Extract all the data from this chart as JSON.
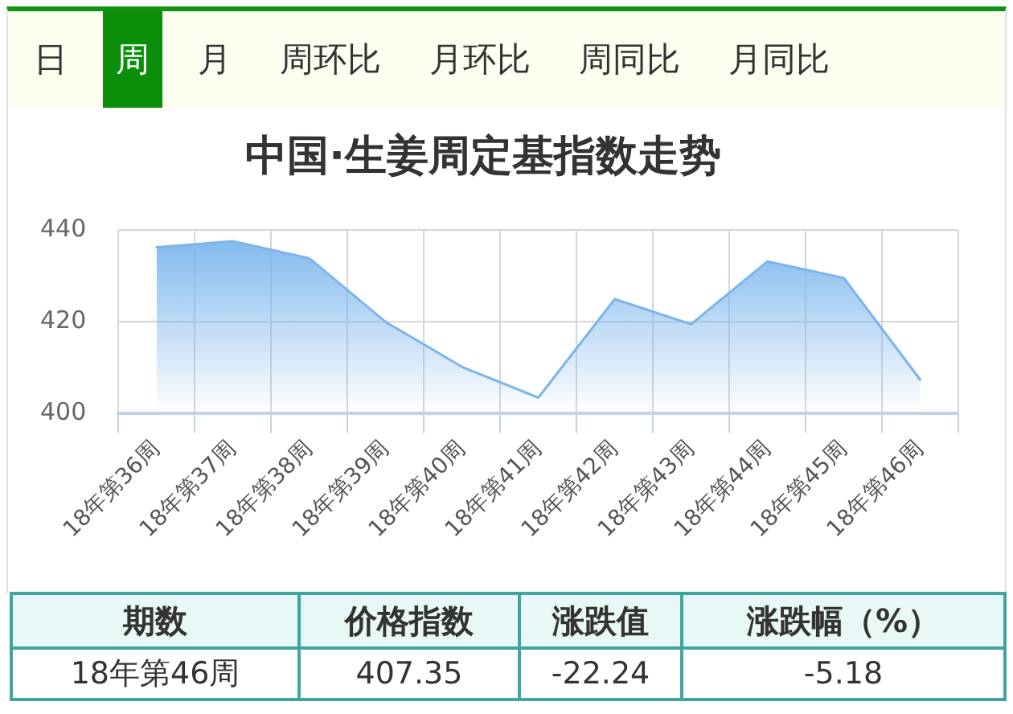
{
  "chart_data": [
    {
      "type": "other",
      "categories": [
        "日",
        "周",
        "月",
        "周环比",
        "月环比",
        "周同比",
        "月同比"
      ],
      "colors": [
        "#fdfdf0",
        "#0b8f0b",
        "#fdfdf0",
        "#fdfdf0",
        "#fdfdf0",
        "#fdfdf0",
        "#fdfdf0"
      ]
    },
    {
      "type": "area",
      "title": "中国·生姜周定基指数走势",
      "categories": [
        "18年第36周",
        "18年第37周",
        "18年第38周",
        "18年第39周",
        "18年第40周",
        "18年第41周",
        "18年第42周",
        "18年第43周",
        "18年第44周",
        "18年第45周",
        "18年第46周"
      ],
      "values": [
        436.3,
        437.6,
        433.9,
        420,
        410.2,
        403.5,
        425,
        419.5,
        433.2,
        429.6,
        407.4
      ],
      "color": "#7cb5ec",
      "ylim": [
        400,
        440
      ],
      "yticks": [
        400,
        420,
        440
      ],
      "grid": true,
      "legend": false,
      "marker": "none",
      "line_style": "solid"
    },
    {
      "type": "other",
      "categories": [
        "期数",
        "价格指数",
        "涨跌值",
        "涨跌幅（%）"
      ],
      "annotations": [
        "18年第46周",
        "407.35",
        "-22.24",
        "-5.18"
      ]
    }
  ]
}
